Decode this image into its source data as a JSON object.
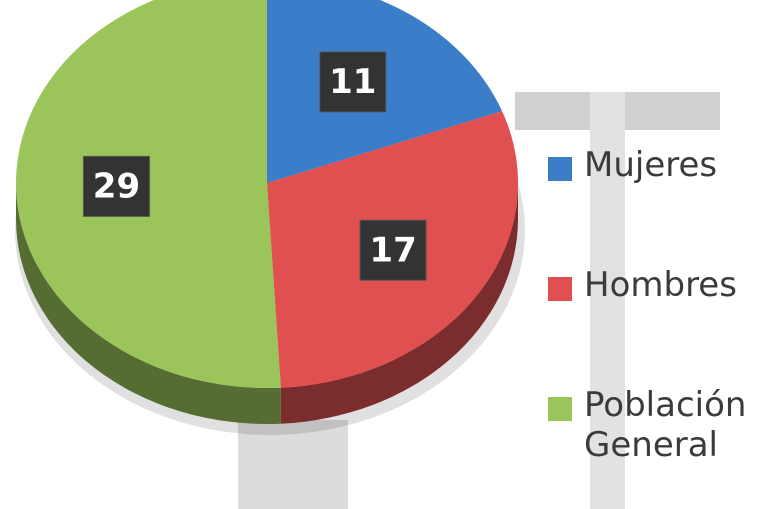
{
  "chart_data": {
    "type": "pie",
    "categories": [
      "Mujeres",
      "Hombres",
      "Población General"
    ],
    "values": [
      11,
      17,
      29
    ],
    "colors": [
      "#3a7dc9",
      "#e05050",
      "#9bc45a"
    ],
    "legend": "right"
  }
}
